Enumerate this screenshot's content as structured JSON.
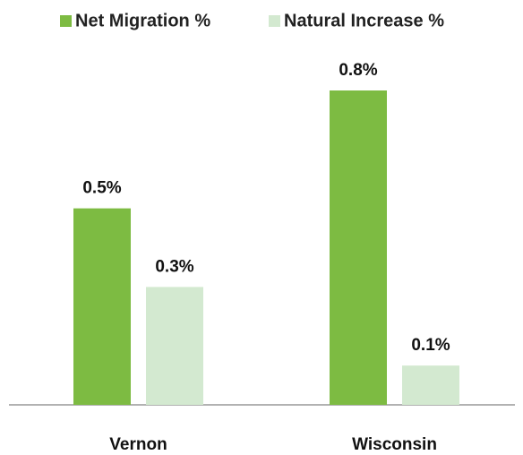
{
  "chart_data": {
    "type": "bar",
    "categories": [
      "Vernon",
      "Wisconsin"
    ],
    "series": [
      {
        "name": "Net Migration %",
        "color": "#7dbb42",
        "values": [
          0.5,
          0.8
        ],
        "value_labels": [
          "0.5%",
          "0.8%"
        ]
      },
      {
        "name": "Natural Increase %",
        "color": "#d3e9d0",
        "values": [
          0.3,
          0.1
        ],
        "value_labels": [
          "0.3%",
          "0.1%"
        ]
      }
    ],
    "legend": "top"
  }
}
